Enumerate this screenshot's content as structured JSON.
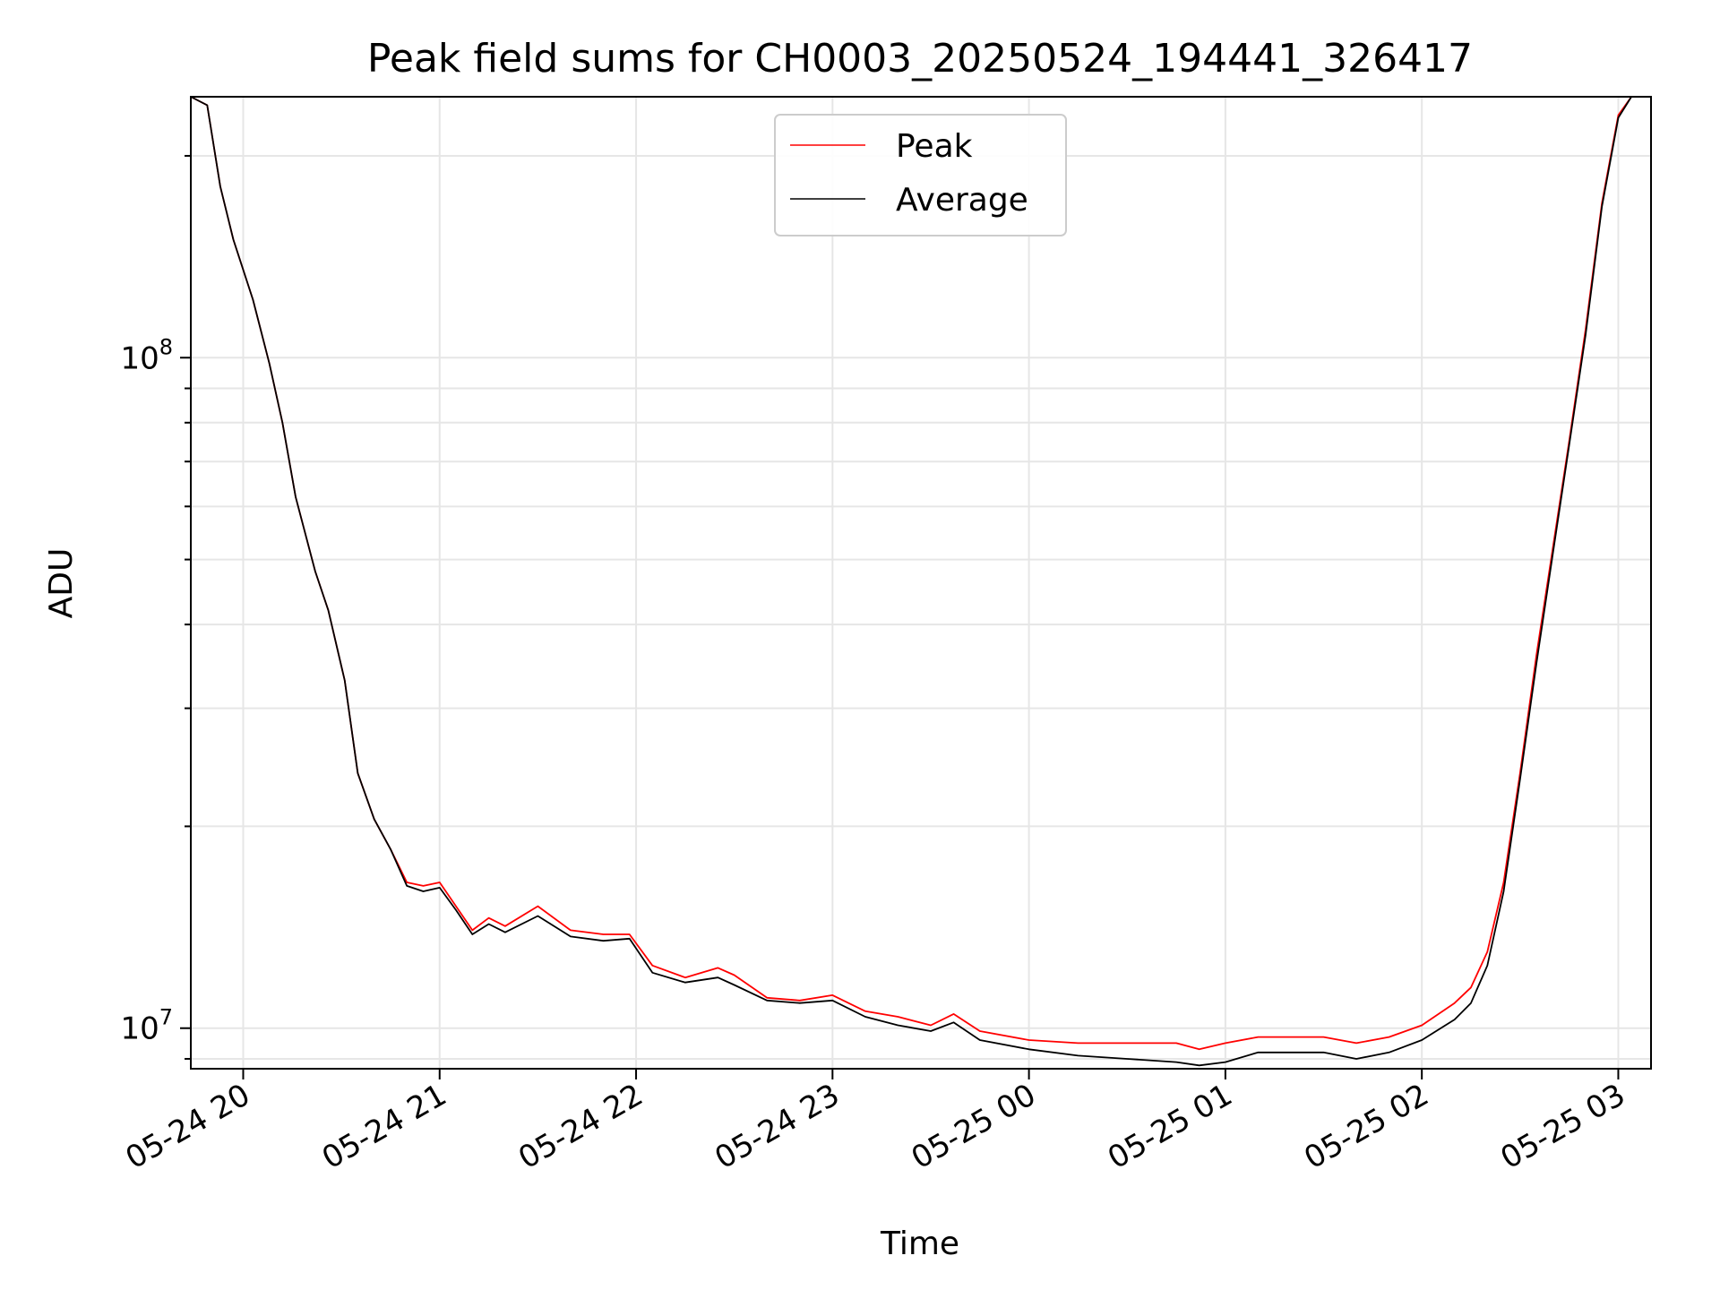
{
  "chart_data": {
    "type": "line",
    "title": "Peak field sums for CH0003_20250524_194441_326417",
    "xlabel": "Time",
    "ylabel": "ADU",
    "yscale": "log",
    "grid": true,
    "legend_position": "top-center",
    "xlim": [
      "2025-05-24 19:44",
      "2025-05-25 03:10"
    ],
    "ylim": [
      8700000,
      245000000
    ],
    "x_ticks": [
      {
        "value": "2025-05-24 20:00",
        "label": "05-24 20"
      },
      {
        "value": "2025-05-24 21:00",
        "label": "05-24 21"
      },
      {
        "value": "2025-05-24 22:00",
        "label": "05-24 22"
      },
      {
        "value": "2025-05-24 23:00",
        "label": "05-24 23"
      },
      {
        "value": "2025-05-25 00:00",
        "label": "05-25 00"
      },
      {
        "value": "2025-05-25 01:00",
        "label": "05-25 01"
      },
      {
        "value": "2025-05-25 02:00",
        "label": "05-25 02"
      },
      {
        "value": "2025-05-25 03:00",
        "label": "05-25 03"
      }
    ],
    "y_ticks": [
      {
        "value": 10000000,
        "base": "10",
        "exp": "7"
      },
      {
        "value": 100000000,
        "base": "10",
        "exp": "8"
      }
    ],
    "x": [
      "2025-05-24 19:44",
      "2025-05-24 19:49",
      "2025-05-24 19:53",
      "2025-05-24 19:57",
      "2025-05-24 20:03",
      "2025-05-24 20:08",
      "2025-05-24 20:12",
      "2025-05-24 20:16",
      "2025-05-24 20:22",
      "2025-05-24 20:26",
      "2025-05-24 20:31",
      "2025-05-24 20:35",
      "2025-05-24 20:40",
      "2025-05-24 20:45",
      "2025-05-24 20:50",
      "2025-05-24 20:55",
      "2025-05-24 21:00",
      "2025-05-24 21:05",
      "2025-05-24 21:10",
      "2025-05-24 21:15",
      "2025-05-24 21:20",
      "2025-05-24 21:30",
      "2025-05-24 21:40",
      "2025-05-24 21:50",
      "2025-05-24 21:58",
      "2025-05-24 22:05",
      "2025-05-24 22:15",
      "2025-05-24 22:25",
      "2025-05-24 22:30",
      "2025-05-24 22:40",
      "2025-05-24 22:50",
      "2025-05-24 23:00",
      "2025-05-24 23:10",
      "2025-05-24 23:20",
      "2025-05-24 23:30",
      "2025-05-24 23:37",
      "2025-05-24 23:45",
      "2025-05-25 00:00",
      "2025-05-25 00:15",
      "2025-05-25 00:30",
      "2025-05-25 00:45",
      "2025-05-25 00:52",
      "2025-05-25 01:00",
      "2025-05-25 01:10",
      "2025-05-25 01:20",
      "2025-05-25 01:30",
      "2025-05-25 01:40",
      "2025-05-25 01:50",
      "2025-05-25 02:00",
      "2025-05-25 02:10",
      "2025-05-25 02:15",
      "2025-05-25 02:20",
      "2025-05-25 02:25",
      "2025-05-25 02:30",
      "2025-05-25 02:35",
      "2025-05-25 02:40",
      "2025-05-25 02:45",
      "2025-05-25 02:50",
      "2025-05-25 02:55",
      "2025-05-25 03:00",
      "2025-05-25 03:04"
    ],
    "series": [
      {
        "name": "Peak",
        "color": "#ff0000",
        "values": [
          245000000,
          238000000,
          180000000,
          150000000,
          122000000,
          98000000,
          80000000,
          62000000,
          48000000,
          42000000,
          33000000,
          24000000,
          20500000,
          18500000,
          16500000,
          16300000,
          16500000,
          15200000,
          14000000,
          14600000,
          14200000,
          15200000,
          14000000,
          13800000,
          13800000,
          12400000,
          11900000,
          12300000,
          12000000,
          11100000,
          11000000,
          11200000,
          10600000,
          10400000,
          10100000,
          10500000,
          9900000,
          9600000,
          9500000,
          9500000,
          9500000,
          9300000,
          9500000,
          9700000,
          9700000,
          9700000,
          9500000,
          9700000,
          10100000,
          10900000,
          11500000,
          13000000,
          16500000,
          24000000,
          36000000,
          52000000,
          75000000,
          110000000,
          170000000,
          230000000,
          245000000
        ]
      },
      {
        "name": "Average",
        "color": "#000000",
        "values": [
          245000000,
          238000000,
          180000000,
          150000000,
          122000000,
          98000000,
          80000000,
          62000000,
          48000000,
          42000000,
          33000000,
          24000000,
          20500000,
          18500000,
          16300000,
          16000000,
          16200000,
          15000000,
          13800000,
          14300000,
          13900000,
          14700000,
          13700000,
          13500000,
          13600000,
          12100000,
          11700000,
          11900000,
          11600000,
          11000000,
          10900000,
          11000000,
          10400000,
          10100000,
          9900000,
          10200000,
          9600000,
          9300000,
          9100000,
          9000000,
          8900000,
          8800000,
          8900000,
          9200000,
          9200000,
          9200000,
          9000000,
          9200000,
          9600000,
          10300000,
          10900000,
          12400000,
          16000000,
          23500000,
          35000000,
          51000000,
          74000000,
          108000000,
          168000000,
          228000000,
          245000000
        ]
      }
    ]
  }
}
